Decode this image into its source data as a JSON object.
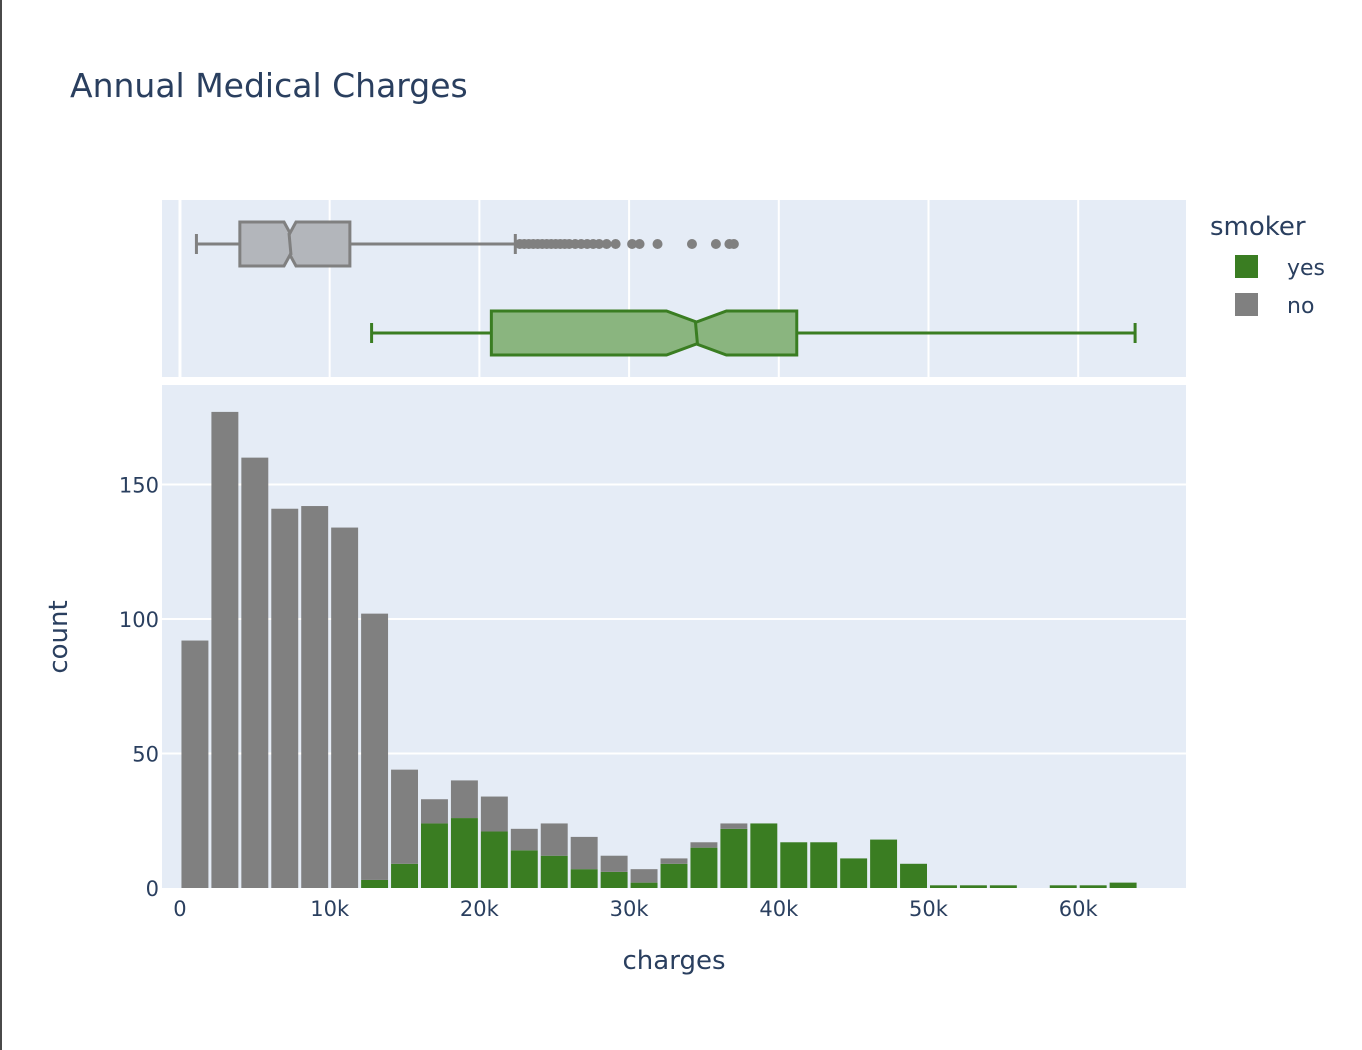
{
  "chart_data": {
    "type": "bar",
    "title": "Annual Medical Charges",
    "xlabel": "charges",
    "ylabel": "count",
    "barmode": "stack",
    "xlim": [
      -1200,
      67200
    ],
    "ylim": [
      0,
      187
    ],
    "x_ticks": [
      0,
      10000,
      20000,
      30000,
      40000,
      50000,
      60000
    ],
    "x_tick_labels": [
      "0",
      "10k",
      "20k",
      "30k",
      "40k",
      "50k",
      "60k"
    ],
    "y_ticks": [
      0,
      50,
      100,
      150
    ],
    "y_tick_labels": [
      "0",
      "50",
      "100",
      "150"
    ],
    "legend": {
      "title": "smoker",
      "placement": "top-right",
      "items": [
        {
          "label": "yes",
          "color": "#3a7d22"
        },
        {
          "label": "no",
          "color": "#808080"
        }
      ]
    },
    "bin_starts": [
      0,
      2000,
      4000,
      6000,
      8000,
      10000,
      12000,
      14000,
      16000,
      18000,
      20000,
      22000,
      24000,
      26000,
      28000,
      30000,
      32000,
      34000,
      36000,
      38000,
      40000,
      42000,
      44000,
      46000,
      48000,
      50000,
      52000,
      54000,
      56000,
      58000,
      60000,
      62000
    ],
    "bin_width": 2000,
    "series": [
      {
        "name": "yes",
        "color": "#3a7d22",
        "values": [
          0,
          0,
          0,
          0,
          0,
          0,
          3,
          9,
          24,
          26,
          21,
          14,
          12,
          7,
          6,
          2,
          9,
          15,
          22,
          24,
          17,
          17,
          11,
          18,
          9,
          1,
          1,
          1,
          0,
          1,
          1,
          2
        ]
      },
      {
        "name": "no",
        "color": "#808080",
        "values": [
          92,
          177,
          160,
          141,
          142,
          134,
          99,
          35,
          9,
          14,
          13,
          8,
          12,
          12,
          6,
          5,
          2,
          2,
          2,
          0,
          0,
          0,
          0,
          0,
          0,
          0,
          0,
          0,
          0,
          0,
          0,
          0
        ]
      }
    ],
    "box_plots": [
      {
        "name": "no",
        "color": "#808080",
        "fill": "#b3b6bb",
        "whisker_low": 1100,
        "q1": 4000,
        "median": 7350,
        "q3": 11350,
        "whisker_high": 22400,
        "notch_low": 6950,
        "notch_high": 7750,
        "outliers": [
          22700,
          23000,
          23300,
          23600,
          23900,
          24200,
          24500,
          24800,
          25100,
          25400,
          25700,
          26000,
          26400,
          26800,
          27200,
          27600,
          28000,
          28500,
          29100,
          30200,
          30700,
          31900,
          34200,
          35800,
          36700,
          37000
        ]
      },
      {
        "name": "yes",
        "color": "#3a7d22",
        "fill": "#8ab57f",
        "whisker_low": 12800,
        "q1": 20800,
        "median": 34500,
        "q3": 41200,
        "whisker_high": 63800,
        "notch_low": 32500,
        "notch_high": 36500,
        "outliers": []
      }
    ]
  }
}
